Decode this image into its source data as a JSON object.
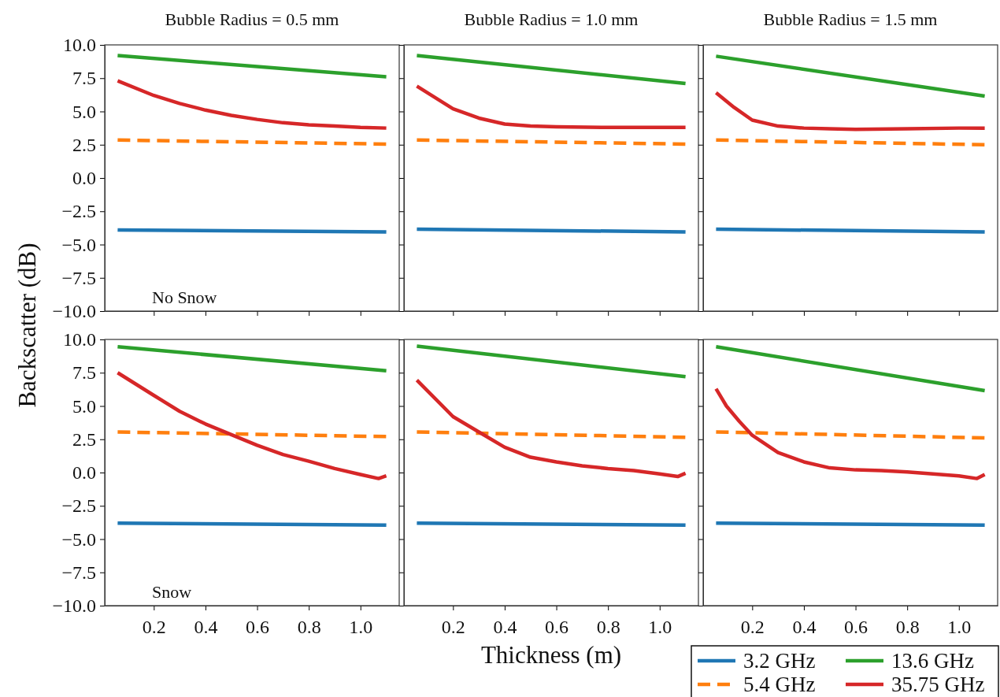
{
  "chart_data": [
    {
      "type": "line",
      "title": "Bubble Radius = 0.5 mm",
      "ylabel": "Backscatter (dB)",
      "annotations": [
        "No Snow"
      ],
      "xlim": [
        0.01,
        1.15
      ],
      "ylim": [
        -10,
        10
      ],
      "xticks": [
        {
          "value": 0.2,
          "label": null
        },
        {
          "value": 0.4,
          "label": null
        },
        {
          "value": 0.6,
          "label": null
        },
        {
          "value": 0.8,
          "label": null
        },
        {
          "value": 1.0,
          "label": null
        }
      ],
      "yticks": [
        {
          "value": -10,
          "label": "−10.0"
        },
        {
          "value": -7.5,
          "label": "−7.5"
        },
        {
          "value": -5,
          "label": "−5.0"
        },
        {
          "value": -2.5,
          "label": "−2.5"
        },
        {
          "value": 0,
          "label": "0.0"
        },
        {
          "value": 2.5,
          "label": "2.5"
        },
        {
          "value": 5,
          "label": "5.0"
        },
        {
          "value": 7.5,
          "label": "7.5"
        },
        {
          "value": 10,
          "label": "10.0"
        }
      ],
      "tick_labels": "y",
      "series": [
        {
          "color": "#1f77b4",
          "x": [
            0.06,
            1.1
          ],
          "values": [
            -3.9,
            -4.05
          ]
        },
        {
          "color": "#ff7f0e",
          "line_style": "dashed",
          "x": [
            0.06,
            1.1
          ],
          "values": [
            2.85,
            2.55
          ]
        },
        {
          "color": "#2ca02c",
          "x": [
            0.06,
            1.1
          ],
          "values": [
            9.2,
            7.6
          ]
        },
        {
          "color": "#d62728",
          "x": [
            0.06,
            0.2,
            0.3,
            0.4,
            0.5,
            0.6,
            0.7,
            0.8,
            0.9,
            1.0,
            1.1
          ],
          "values": [
            7.3,
            6.2,
            5.6,
            5.1,
            4.7,
            4.4,
            4.15,
            4.0,
            3.9,
            3.8,
            3.75
          ]
        }
      ]
    },
    {
      "type": "line",
      "title": "Bubble Radius = 1.0 mm",
      "xlim": [
        0.01,
        1.15
      ],
      "ylim": [
        -10,
        10
      ],
      "xticks": [
        {
          "value": 0.2,
          "label": null
        },
        {
          "value": 0.4,
          "label": null
        },
        {
          "value": 0.6,
          "label": null
        },
        {
          "value": 0.8,
          "label": null
        },
        {
          "value": 1.0,
          "label": null
        }
      ],
      "yticks": [
        {
          "value": -10,
          "label": null
        },
        {
          "value": -7.5,
          "label": null
        },
        {
          "value": -5,
          "label": null
        },
        {
          "value": -2.5,
          "label": null
        },
        {
          "value": 0,
          "label": null
        },
        {
          "value": 2.5,
          "label": null
        },
        {
          "value": 5,
          "label": null
        },
        {
          "value": 7.5,
          "label": null
        },
        {
          "value": 10,
          "label": null
        }
      ],
      "tick_labels": false,
      "series": [
        {
          "color": "#1f77b4",
          "x": [
            0.06,
            1.1
          ],
          "values": [
            -3.85,
            -4.05
          ]
        },
        {
          "color": "#ff7f0e",
          "line_style": "dashed",
          "x": [
            0.06,
            1.1
          ],
          "values": [
            2.85,
            2.55
          ]
        },
        {
          "color": "#2ca02c",
          "x": [
            0.06,
            1.1
          ],
          "values": [
            9.2,
            7.1
          ]
        },
        {
          "color": "#d62728",
          "x": [
            0.06,
            0.2,
            0.3,
            0.4,
            0.5,
            0.6,
            0.8,
            1.0,
            1.1
          ],
          "values": [
            6.9,
            5.2,
            4.5,
            4.05,
            3.9,
            3.85,
            3.8,
            3.8,
            3.8
          ]
        }
      ]
    },
    {
      "type": "line",
      "title": "Bubble Radius = 1.5 mm",
      "xlim": [
        0.01,
        1.15
      ],
      "ylim": [
        -10,
        10
      ],
      "xticks": [
        {
          "value": 0.2,
          "label": null
        },
        {
          "value": 0.4,
          "label": null
        },
        {
          "value": 0.6,
          "label": null
        },
        {
          "value": 0.8,
          "label": null
        },
        {
          "value": 1.0,
          "label": null
        }
      ],
      "yticks": [
        {
          "value": -10,
          "label": null
        },
        {
          "value": -7.5,
          "label": null
        },
        {
          "value": -5,
          "label": null
        },
        {
          "value": -2.5,
          "label": null
        },
        {
          "value": 0,
          "label": null
        },
        {
          "value": 2.5,
          "label": null
        },
        {
          "value": 5,
          "label": null
        },
        {
          "value": 7.5,
          "label": null
        },
        {
          "value": 10,
          "label": null
        }
      ],
      "tick_labels": false,
      "series": [
        {
          "color": "#1f77b4",
          "x": [
            0.06,
            1.1
          ],
          "values": [
            -3.85,
            -4.05
          ]
        },
        {
          "color": "#ff7f0e",
          "line_style": "dashed",
          "x": [
            0.06,
            1.1
          ],
          "values": [
            2.85,
            2.5
          ]
        },
        {
          "color": "#2ca02c",
          "x": [
            0.06,
            1.1
          ],
          "values": [
            9.15,
            6.15
          ]
        },
        {
          "color": "#d62728",
          "x": [
            0.06,
            0.13,
            0.2,
            0.3,
            0.4,
            0.5,
            0.6,
            0.8,
            1.0,
            1.1
          ],
          "values": [
            6.4,
            5.3,
            4.35,
            3.9,
            3.75,
            3.7,
            3.65,
            3.7,
            3.75,
            3.75
          ]
        }
      ]
    },
    {
      "type": "line",
      "annotations": [
        "Snow"
      ],
      "xlim": [
        0.01,
        1.15
      ],
      "ylim": [
        -10,
        10
      ],
      "xticks": [
        {
          "value": 0.2,
          "label": "0.2"
        },
        {
          "value": 0.4,
          "label": "0.4"
        },
        {
          "value": 0.6,
          "label": "0.6"
        },
        {
          "value": 0.8,
          "label": "0.8"
        },
        {
          "value": 1.0,
          "label": "1.0"
        }
      ],
      "yticks": [
        {
          "value": -10,
          "label": "−10.0"
        },
        {
          "value": -7.5,
          "label": "−7.5"
        },
        {
          "value": -5,
          "label": "−5.0"
        },
        {
          "value": -2.5,
          "label": "−2.5"
        },
        {
          "value": 0,
          "label": "0.0"
        },
        {
          "value": 2.5,
          "label": "2.5"
        },
        {
          "value": 5,
          "label": "5.0"
        },
        {
          "value": 7.5,
          "label": "7.5"
        },
        {
          "value": 10,
          "label": "10.0"
        }
      ],
      "series": [
        {
          "color": "#1f77b4",
          "x": [
            0.06,
            1.1
          ],
          "values": [
            -3.8,
            -3.95
          ]
        },
        {
          "color": "#ff7f0e",
          "line_style": "dashed",
          "x": [
            0.06,
            1.1
          ],
          "values": [
            3.05,
            2.7
          ]
        },
        {
          "color": "#2ca02c",
          "x": [
            0.06,
            1.1
          ],
          "values": [
            9.45,
            7.65
          ]
        },
        {
          "color": "#d62728",
          "x": [
            0.06,
            0.2,
            0.3,
            0.4,
            0.5,
            0.6,
            0.7,
            0.8,
            0.9,
            1.0,
            1.07,
            1.1
          ],
          "values": [
            7.5,
            5.8,
            4.6,
            3.65,
            2.85,
            2.05,
            1.35,
            0.85,
            0.3,
            -0.15,
            -0.45,
            -0.25
          ]
        }
      ]
    },
    {
      "type": "line",
      "xlabel": "Thickness (m)",
      "xlim": [
        0.01,
        1.15
      ],
      "ylim": [
        -10,
        10
      ],
      "xticks": [
        {
          "value": 0.2,
          "label": "0.2"
        },
        {
          "value": 0.4,
          "label": "0.4"
        },
        {
          "value": 0.6,
          "label": "0.6"
        },
        {
          "value": 0.8,
          "label": "0.8"
        },
        {
          "value": 1.0,
          "label": "1.0"
        }
      ],
      "yticks": [
        {
          "value": -10,
          "label": null
        },
        {
          "value": -7.5,
          "label": null
        },
        {
          "value": -5,
          "label": null
        },
        {
          "value": -2.5,
          "label": null
        },
        {
          "value": 0,
          "label": null
        },
        {
          "value": 2.5,
          "label": null
        },
        {
          "value": 5,
          "label": null
        },
        {
          "value": 7.5,
          "label": null
        },
        {
          "value": 10,
          "label": null
        }
      ],
      "tick_labels": "x",
      "series": [
        {
          "color": "#1f77b4",
          "x": [
            0.06,
            1.1
          ],
          "values": [
            -3.8,
            -3.95
          ]
        },
        {
          "color": "#ff7f0e",
          "line_style": "dashed",
          "x": [
            0.06,
            1.1
          ],
          "values": [
            3.05,
            2.65
          ]
        },
        {
          "color": "#2ca02c",
          "x": [
            0.06,
            1.1
          ],
          "values": [
            9.5,
            7.2
          ]
        },
        {
          "color": "#d62728",
          "x": [
            0.06,
            0.2,
            0.3,
            0.4,
            0.5,
            0.6,
            0.7,
            0.8,
            0.9,
            1.0,
            1.07,
            1.1
          ],
          "values": [
            6.95,
            4.2,
            3.05,
            1.9,
            1.15,
            0.8,
            0.5,
            0.3,
            0.15,
            -0.1,
            -0.3,
            -0.05
          ]
        }
      ]
    },
    {
      "type": "line",
      "legend": "bottom right",
      "xlim": [
        0.01,
        1.15
      ],
      "ylim": [
        -10,
        10
      ],
      "xticks": [
        {
          "value": 0.2,
          "label": "0.2"
        },
        {
          "value": 0.4,
          "label": "0.4"
        },
        {
          "value": 0.6,
          "label": "0.6"
        },
        {
          "value": 0.8,
          "label": "0.8"
        },
        {
          "value": 1.0,
          "label": "1.0"
        }
      ],
      "yticks": [
        {
          "value": -10,
          "label": null
        },
        {
          "value": -7.5,
          "label": null
        },
        {
          "value": -5,
          "label": null
        },
        {
          "value": -2.5,
          "label": null
        },
        {
          "value": 0,
          "label": null
        },
        {
          "value": 2.5,
          "label": null
        },
        {
          "value": 5,
          "label": null
        },
        {
          "value": 7.5,
          "label": null
        },
        {
          "value": 10,
          "label": null
        }
      ],
      "tick_labels": "x",
      "series": [
        {
          "name": "3.2 GHz",
          "color": "#1f77b4",
          "x": [
            0.06,
            1.1
          ],
          "values": [
            -3.8,
            -3.95
          ]
        },
        {
          "name": "5.4 GHz",
          "color": "#ff7f0e",
          "line_style": "dashed",
          "x": [
            0.06,
            1.1
          ],
          "values": [
            3.05,
            2.6
          ]
        },
        {
          "name": "13.6 GHz",
          "color": "#2ca02c",
          "x": [
            0.06,
            1.1
          ],
          "values": [
            9.45,
            6.15
          ]
        },
        {
          "name": "35.75 GHz",
          "color": "#d62728",
          "x": [
            0.06,
            0.1,
            0.15,
            0.2,
            0.3,
            0.4,
            0.5,
            0.6,
            0.7,
            0.8,
            0.9,
            1.0,
            1.07,
            1.1
          ],
          "values": [
            6.3,
            5.0,
            3.85,
            2.8,
            1.5,
            0.8,
            0.35,
            0.2,
            0.15,
            0.05,
            -0.1,
            -0.25,
            -0.45,
            -0.15
          ]
        }
      ]
    }
  ]
}
